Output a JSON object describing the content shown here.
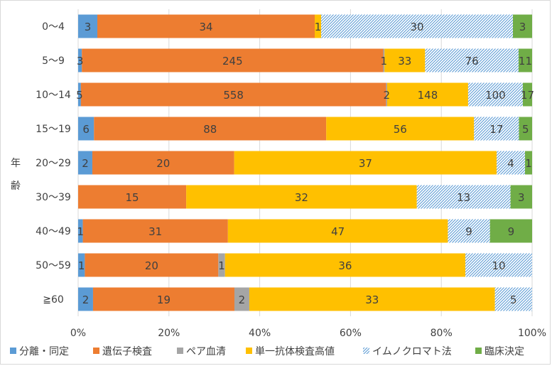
{
  "chart_data": {
    "type": "bar",
    "orientation": "horizontal",
    "stacked": "percent",
    "title": "",
    "ylabel": "年齢",
    "xlabel": "",
    "categories": [
      "0～4",
      "5～9",
      "10～14",
      "15～19",
      "20～29",
      "30～39",
      "40～49",
      "50～59",
      "≧60"
    ],
    "xlim": [
      0,
      100
    ],
    "x_ticks": [
      "0%",
      "20%",
      "40%",
      "60%",
      "80%",
      "100%"
    ],
    "grid": true,
    "legend_position": "bottom",
    "series": [
      {
        "name": "分離・同定",
        "color": "#5b9bd5",
        "pattern": "solid",
        "values": [
          3,
          3,
          5,
          6,
          2,
          0,
          1,
          1,
          2
        ]
      },
      {
        "name": "遺伝子検査",
        "color": "#ed7d31",
        "pattern": "solid",
        "values": [
          34,
          245,
          558,
          88,
          20,
          15,
          31,
          20,
          19
        ]
      },
      {
        "name": "ペア血清",
        "color": "#a5a5a5",
        "pattern": "solid",
        "values": [
          0,
          1,
          2,
          0,
          0,
          0,
          0,
          1,
          2
        ]
      },
      {
        "name": "単一抗体検査高値",
        "color": "#ffc000",
        "pattern": "solid",
        "values": [
          1,
          33,
          148,
          56,
          37,
          32,
          47,
          36,
          33
        ]
      },
      {
        "name": "イムノクロマト法",
        "color": "#5b9bd5",
        "pattern": "hatched",
        "values": [
          30,
          76,
          100,
          17,
          4,
          13,
          9,
          10,
          5
        ]
      },
      {
        "name": "臨床決定",
        "color": "#70ad47",
        "pattern": "solid",
        "values": [
          3,
          11,
          17,
          5,
          1,
          3,
          9,
          0,
          0
        ]
      }
    ]
  }
}
